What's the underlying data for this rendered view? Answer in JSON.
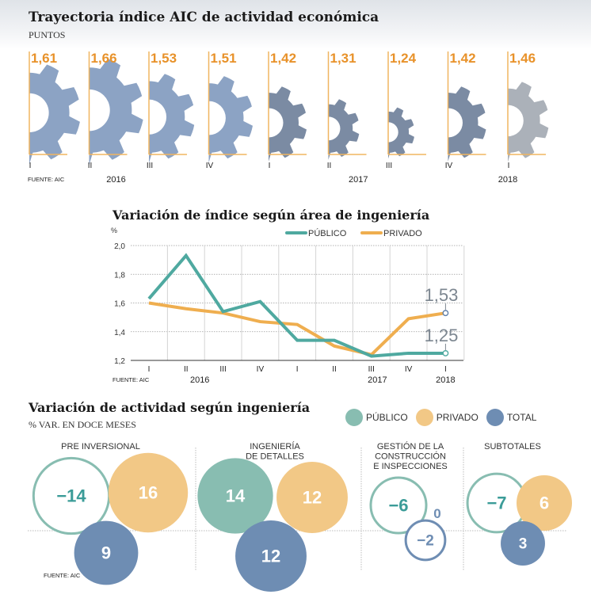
{
  "colors": {
    "accent_orange": "#e8922a",
    "axis_orange": "#f0b560",
    "gear_2016": "#8ca3c4",
    "gear_2017": "#7b8ba3",
    "gear_2018": "#abb1b9",
    "publico": "#4fa9a0",
    "privado": "#efae4f",
    "bubble_publico": "#88bdb1",
    "bubble_privado": "#f2c886",
    "bubble_total": "#6e8db3",
    "publico_text": "#3b9c98",
    "annot_gray": "#7c8690"
  },
  "header": {
    "title": "Trayectoria índice AIC de actividad económica",
    "subtitle": "PUNTOS"
  },
  "line_section": {
    "title": "Variación de índice según área de ingeniería"
  },
  "bubble_section": {
    "title": "Variación de actividad según ingeniería",
    "subtitle": "% VAR. EN DOCE MESES",
    "legend": [
      {
        "label": "PÚBLICO",
        "key": "bubble_publico"
      },
      {
        "label": "PRIVADO",
        "key": "bubble_privado"
      },
      {
        "label": "TOTAL",
        "key": "bubble_total"
      }
    ]
  },
  "chart_data": [
    {
      "type": "bar",
      "title": "Trayectoria índice AIC de actividad económica",
      "subtitle": "PUNTOS",
      "mark": "half-gear scaled by value",
      "categories": [
        "I",
        "II",
        "III",
        "IV",
        "I",
        "II",
        "III",
        "IV",
        "I"
      ],
      "years": [
        {
          "label": "2016",
          "quarters": [
            0,
            1,
            2,
            3
          ]
        },
        {
          "label": "2017",
          "quarters": [
            4,
            5,
            6,
            7
          ]
        },
        {
          "label": "2018",
          "quarters": [
            8
          ]
        }
      ],
      "values": [
        1.61,
        1.66,
        1.53,
        1.51,
        1.42,
        1.31,
        1.24,
        1.42,
        1.46
      ],
      "value_labels": [
        "1,61",
        "1,66",
        "1,53",
        "1,51",
        "1,42",
        "1,31",
        "1,24",
        "1,42",
        "1,46"
      ],
      "year_of": [
        2016,
        2016,
        2016,
        2016,
        2017,
        2017,
        2017,
        2017,
        2018
      ],
      "source": "FUENTE: AIC"
    },
    {
      "type": "line",
      "title": "Variación de índice según área de ingeniería",
      "ylabel": "%",
      "ylim": [
        1.2,
        2.0
      ],
      "yticks": [
        1.2,
        1.4,
        1.6,
        1.8,
        2.0
      ],
      "ytick_labels": [
        "1,2",
        "1,4",
        "1,6",
        "1,8",
        "2,0"
      ],
      "categories": [
        "I",
        "II",
        "III",
        "IV",
        "I",
        "II",
        "III",
        "IV",
        "I"
      ],
      "years": [
        {
          "label": "2016",
          "center_index": 1.5
        },
        {
          "label": "2017",
          "center_index": 5.5
        },
        {
          "label": "2018",
          "center_index": 8
        }
      ],
      "series": [
        {
          "name": "PÚBLICO",
          "color_key": "publico",
          "values": [
            1.63,
            1.93,
            1.54,
            1.61,
            1.34,
            1.34,
            1.23,
            1.25,
            1.25
          ]
        },
        {
          "name": "PRIVADO",
          "color_key": "privado",
          "values": [
            1.6,
            1.56,
            1.53,
            1.47,
            1.45,
            1.3,
            1.24,
            1.49,
            1.53
          ]
        }
      ],
      "annotations": [
        {
          "series": "PRIVADO",
          "index": 8,
          "label": "1,53"
        },
        {
          "series": "PÚBLICO",
          "index": 8,
          "label": "1,25"
        }
      ],
      "grid": true,
      "legend": "top-right",
      "source": "FUENTE: AIC"
    },
    {
      "type": "scatter",
      "mark": "bubble",
      "title": "Variación de actividad según ingeniería",
      "subtitle": "% VAR. EN DOCE MESES",
      "groups": [
        {
          "label": [
            "PRE INVERSIONAL"
          ],
          "publico": -14,
          "privado": 16,
          "total": 9
        },
        {
          "label": [
            "INGENIERÍA",
            "DE DETALLES"
          ],
          "publico": 14,
          "privado": 12,
          "total": 12
        },
        {
          "label": [
            "GESTIÓN DE LA",
            "CONSTRUCCIÓN",
            "E INSPECCIONES"
          ],
          "publico": -6,
          "privado": 0,
          "total": -2
        },
        {
          "label": [
            "SUBTOTALES"
          ],
          "publico": -7,
          "privado": 6,
          "total": 3
        }
      ],
      "value_labels": {
        "negative_prefix": "−"
      },
      "legend": "top-right",
      "source": "FUENTE: AIC"
    }
  ]
}
